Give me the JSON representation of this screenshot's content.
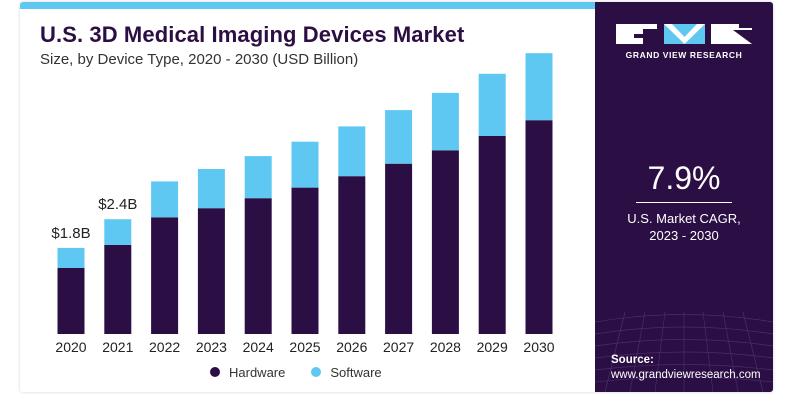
{
  "header": {
    "title": "U.S. 3D Medical Imaging Devices Market",
    "subtitle": "Size, by Device Type, 2020 - 2030 (USD Billion)"
  },
  "legend": {
    "items": [
      {
        "label": "Hardware",
        "color": "#2b0e43"
      },
      {
        "label": "Software",
        "color": "#5ec8f2"
      }
    ]
  },
  "side_panel": {
    "brand": "GRAND VIEW RESEARCH",
    "logo_icon": "gvr-logo-icon",
    "cagr_value": "7.9%",
    "cagr_label_line1": "U.S. Market CAGR,",
    "cagr_label_line2": "2023 - 2030",
    "source_label": "Source:",
    "source_url": "www.grandviewresearch.com",
    "background_color": "#2b0e43"
  },
  "chart_data": {
    "type": "bar",
    "stacked": true,
    "title": "U.S. 3D Medical Imaging Devices Market",
    "subtitle": "Size, by Device Type, 2020 - 2030 (USD Billion)",
    "categories": [
      "2020",
      "2021",
      "2022",
      "2023",
      "2024",
      "2025",
      "2026",
      "2027",
      "2028",
      "2029",
      "2030"
    ],
    "series": [
      {
        "name": "Hardware",
        "color": "#2b0e43",
        "values": [
          1.38,
          1.86,
          2.44,
          2.63,
          2.84,
          3.06,
          3.3,
          3.56,
          3.84,
          4.14,
          4.47
        ]
      },
      {
        "name": "Software",
        "color": "#5ec8f2",
        "values": [
          0.42,
          0.54,
          0.75,
          0.82,
          0.88,
          0.96,
          1.04,
          1.12,
          1.2,
          1.3,
          1.4
        ]
      }
    ],
    "data_labels": [
      {
        "category": "2020",
        "text": "$1.8B"
      },
      {
        "category": "2021",
        "text": "$2.4B"
      }
    ],
    "ylim": [
      0,
      6.0
    ],
    "grid": false,
    "legend_position": "bottom-center",
    "xlabel": "",
    "ylabel": ""
  }
}
